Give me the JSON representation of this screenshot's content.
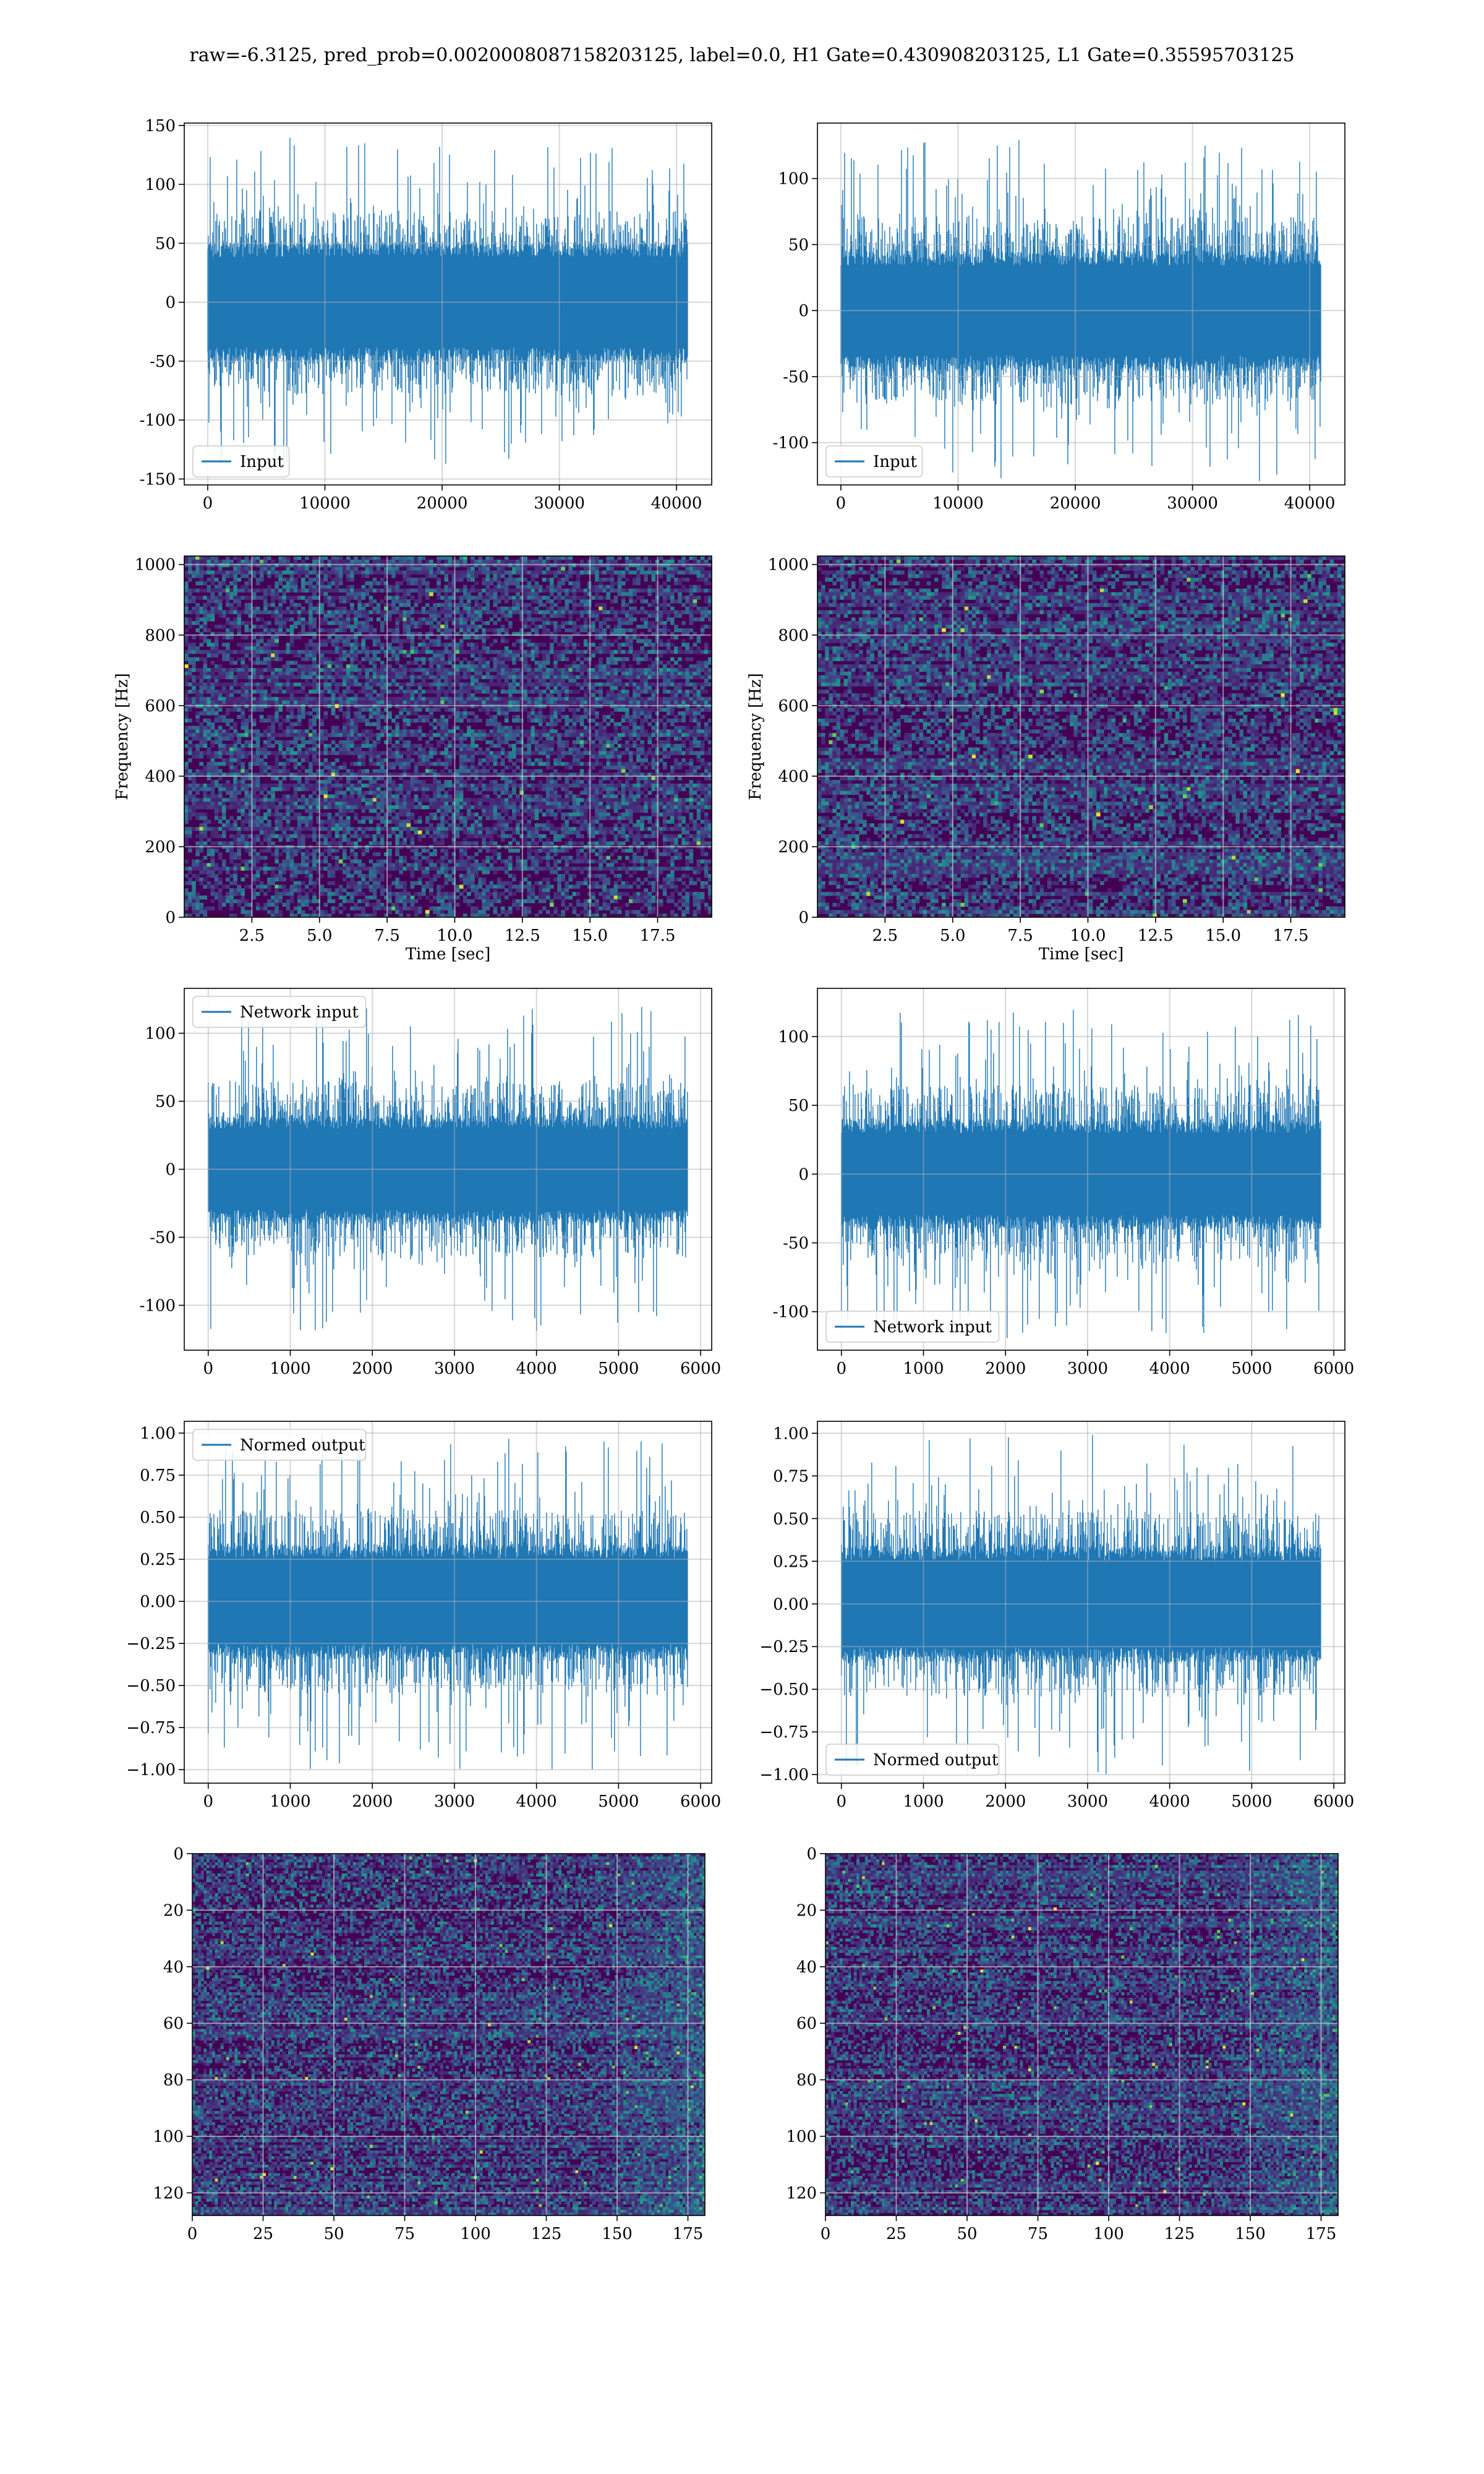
{
  "figure": {
    "title": "raw=-6.3125, pred_prob=0.0020008087158203125, label=0.0, H1 Gate=0.430908203125, L1 Gate=0.35595703125"
  },
  "colors": {
    "line": "#1f77b4",
    "grid": "#b0b0b0",
    "heat_low": "#440154",
    "heat_mid": "#21918c",
    "heat_high": "#fde725"
  },
  "chart_data": [
    {
      "id": "row1-left",
      "type": "line",
      "row": 1,
      "col": 1,
      "title": "",
      "xlabel": "",
      "ylabel": "",
      "legend": {
        "label": "Input",
        "placement": "lower left"
      },
      "xlim": [
        -2000,
        43000
      ],
      "ylim": [
        -155,
        152
      ],
      "xticks": [
        0,
        10000,
        20000,
        30000,
        40000
      ],
      "yticks": [
        -150,
        -100,
        -50,
        0,
        50,
        100,
        150
      ],
      "x_range": [
        0,
        40960
      ],
      "n_points": 40960,
      "core_amplitude": 45,
      "peak_amplitude": 140,
      "grid": true
    },
    {
      "id": "row1-right",
      "type": "line",
      "row": 1,
      "col": 2,
      "title": "",
      "xlabel": "",
      "ylabel": "",
      "legend": {
        "label": "Input",
        "placement": "lower left"
      },
      "xlim": [
        -2000,
        43000
      ],
      "ylim": [
        -132,
        142
      ],
      "xticks": [
        0,
        10000,
        20000,
        30000,
        40000
      ],
      "yticks": [
        -100,
        -50,
        0,
        50,
        100
      ],
      "x_range": [
        0,
        40960
      ],
      "n_points": 40960,
      "core_amplitude": 40,
      "peak_amplitude": 130,
      "grid": true
    },
    {
      "id": "row2-left",
      "type": "heatmap",
      "row": 2,
      "col": 1,
      "title": "",
      "xlabel": "Time [sec]",
      "ylabel": "Frequency [Hz]",
      "xlim": [
        0,
        19.5
      ],
      "ylim": [
        0,
        1024
      ],
      "xticks": [
        2.5,
        5.0,
        7.5,
        10.0,
        12.5,
        15.0,
        17.5
      ],
      "yticks": [
        0,
        200,
        400,
        600,
        800,
        1000
      ],
      "colormap": "viridis",
      "grid": true
    },
    {
      "id": "row2-right",
      "type": "heatmap",
      "row": 2,
      "col": 2,
      "title": "",
      "xlabel": "Time [sec]",
      "ylabel": "Frequency [Hz]",
      "xlim": [
        0,
        19.5
      ],
      "ylim": [
        0,
        1024
      ],
      "xticks": [
        2.5,
        5.0,
        7.5,
        10.0,
        12.5,
        15.0,
        17.5
      ],
      "yticks": [
        0,
        200,
        400,
        600,
        800,
        1000
      ],
      "colormap": "viridis",
      "grid": true
    },
    {
      "id": "row3-left",
      "type": "line",
      "row": 3,
      "col": 1,
      "title": "",
      "xlabel": "",
      "ylabel": "",
      "legend": {
        "label": "Network input",
        "placement": "upper left"
      },
      "xlim": [
        -292,
        6135
      ],
      "ylim": [
        -133,
        133
      ],
      "xticks": [
        0,
        1000,
        2000,
        3000,
        4000,
        5000,
        6000
      ],
      "yticks": [
        -100,
        -50,
        0,
        50,
        100
      ],
      "x_range": [
        0,
        5843
      ],
      "n_points": 5844,
      "core_amplitude": 35,
      "peak_amplitude": 120,
      "grid": true
    },
    {
      "id": "row3-right",
      "type": "line",
      "row": 3,
      "col": 2,
      "title": "",
      "xlabel": "",
      "ylabel": "",
      "legend": {
        "label": "Network input",
        "placement": "lower left"
      },
      "xlim": [
        -292,
        6135
      ],
      "ylim": [
        -128,
        135
      ],
      "xticks": [
        0,
        1000,
        2000,
        3000,
        4000,
        5000,
        6000
      ],
      "yticks": [
        -100,
        -50,
        0,
        50,
        100
      ],
      "x_range": [
        0,
        5843
      ],
      "n_points": 5844,
      "core_amplitude": 35,
      "peak_amplitude": 120,
      "grid": true
    },
    {
      "id": "row4-left",
      "type": "line",
      "row": 4,
      "col": 1,
      "title": "",
      "xlabel": "",
      "ylabel": "",
      "legend": {
        "label": "Normed output",
        "placement": "upper left"
      },
      "xlim": [
        -292,
        6135
      ],
      "ylim": [
        -1.08,
        1.07
      ],
      "xticks": [
        0,
        1000,
        2000,
        3000,
        4000,
        5000,
        6000
      ],
      "yticks": [
        -1.0,
        -0.75,
        -0.5,
        -0.25,
        0.0,
        0.25,
        0.5,
        0.75,
        1.0
      ],
      "x_range": [
        0,
        5843
      ],
      "n_points": 5844,
      "core_amplitude": 0.3,
      "peak_amplitude": 1.0,
      "grid": true
    },
    {
      "id": "row4-right",
      "type": "line",
      "row": 4,
      "col": 2,
      "title": "",
      "xlabel": "",
      "ylabel": "",
      "legend": {
        "label": "Normed output",
        "placement": "lower left"
      },
      "xlim": [
        -292,
        6135
      ],
      "ylim": [
        -1.05,
        1.07
      ],
      "xticks": [
        0,
        1000,
        2000,
        3000,
        4000,
        5000,
        6000
      ],
      "yticks": [
        -1.0,
        -0.75,
        -0.5,
        -0.25,
        0.0,
        0.25,
        0.5,
        0.75,
        1.0
      ],
      "x_range": [
        0,
        5843
      ],
      "n_points": 5844,
      "core_amplitude": 0.3,
      "peak_amplitude": 1.0,
      "grid": true
    },
    {
      "id": "row5-left",
      "type": "heatmap",
      "row": 5,
      "col": 1,
      "title": "",
      "xlabel": "",
      "ylabel": "",
      "xlim": [
        0,
        181
      ],
      "ylim": [
        128,
        0
      ],
      "xticks": [
        0,
        25,
        50,
        75,
        100,
        125,
        150,
        175
      ],
      "yticks": [
        0,
        20,
        40,
        60,
        80,
        100,
        120
      ],
      "n_cols": 182,
      "n_rows": 128,
      "colormap": "viridis",
      "grid": true
    },
    {
      "id": "row5-right",
      "type": "heatmap",
      "row": 5,
      "col": 2,
      "title": "",
      "xlabel": "",
      "ylabel": "",
      "xlim": [
        0,
        181
      ],
      "ylim": [
        128,
        0
      ],
      "xticks": [
        0,
        25,
        50,
        75,
        100,
        125,
        150,
        175
      ],
      "yticks": [
        0,
        20,
        40,
        60,
        80,
        100,
        120
      ],
      "n_cols": 182,
      "n_rows": 128,
      "colormap": "viridis",
      "grid": true
    }
  ]
}
